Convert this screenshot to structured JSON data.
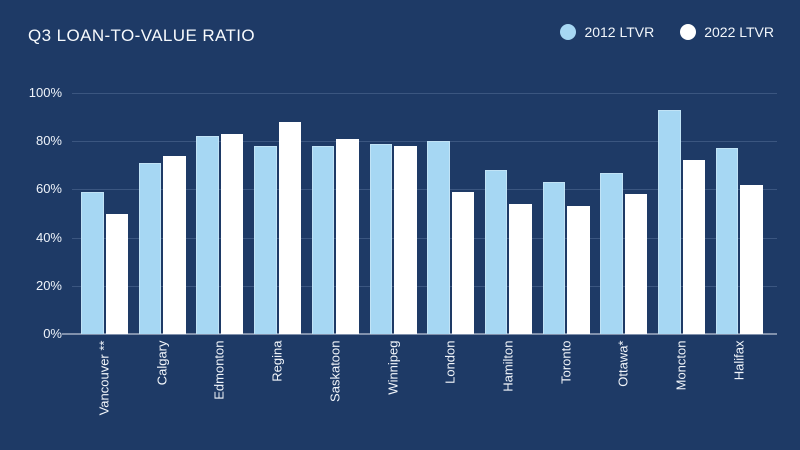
{
  "header": {
    "title": "Q3 LOAN-TO-VALUE RATIO"
  },
  "colors": {
    "background": "#1e3a66",
    "series_2012": "#a6d7f3",
    "series_2022": "#ffffff",
    "gridline": "#88a3c7",
    "axis_line": "#9eabc0",
    "text": "#f2f6fb"
  },
  "legend": {
    "items": [
      {
        "label": "2012 LTVR"
      },
      {
        "label": "2022 LTVR"
      }
    ]
  },
  "chart_data": {
    "type": "bar",
    "title": "Q3 LOAN-TO-VALUE RATIO",
    "categories": [
      "Vancouver **",
      "Calgary",
      "Edmonton",
      "Regina",
      "Saskatoon",
      "Winnipeg",
      "London",
      "Hamilton",
      "Toronto",
      "Ottawa*",
      "Moncton",
      "Halifax"
    ],
    "series": [
      {
        "name": "2012 LTVR",
        "color": "#a6d7f3",
        "values": [
          59,
          71,
          82,
          78,
          78,
          79,
          80,
          68,
          63,
          67,
          93,
          77
        ]
      },
      {
        "name": "2022 LTVR",
        "color": "#ffffff",
        "values": [
          50,
          74,
          83,
          88,
          81,
          78,
          59,
          54,
          53,
          58,
          72,
          62
        ]
      }
    ],
    "xlabel": "",
    "ylabel": "",
    "ylim": [
      0,
      100
    ],
    "y_ticks": [
      "0%",
      "20%",
      "40%",
      "60%",
      "80%",
      "100%"
    ],
    "grid": true,
    "legend_position": "top-right",
    "x_label_rotation": -90
  }
}
